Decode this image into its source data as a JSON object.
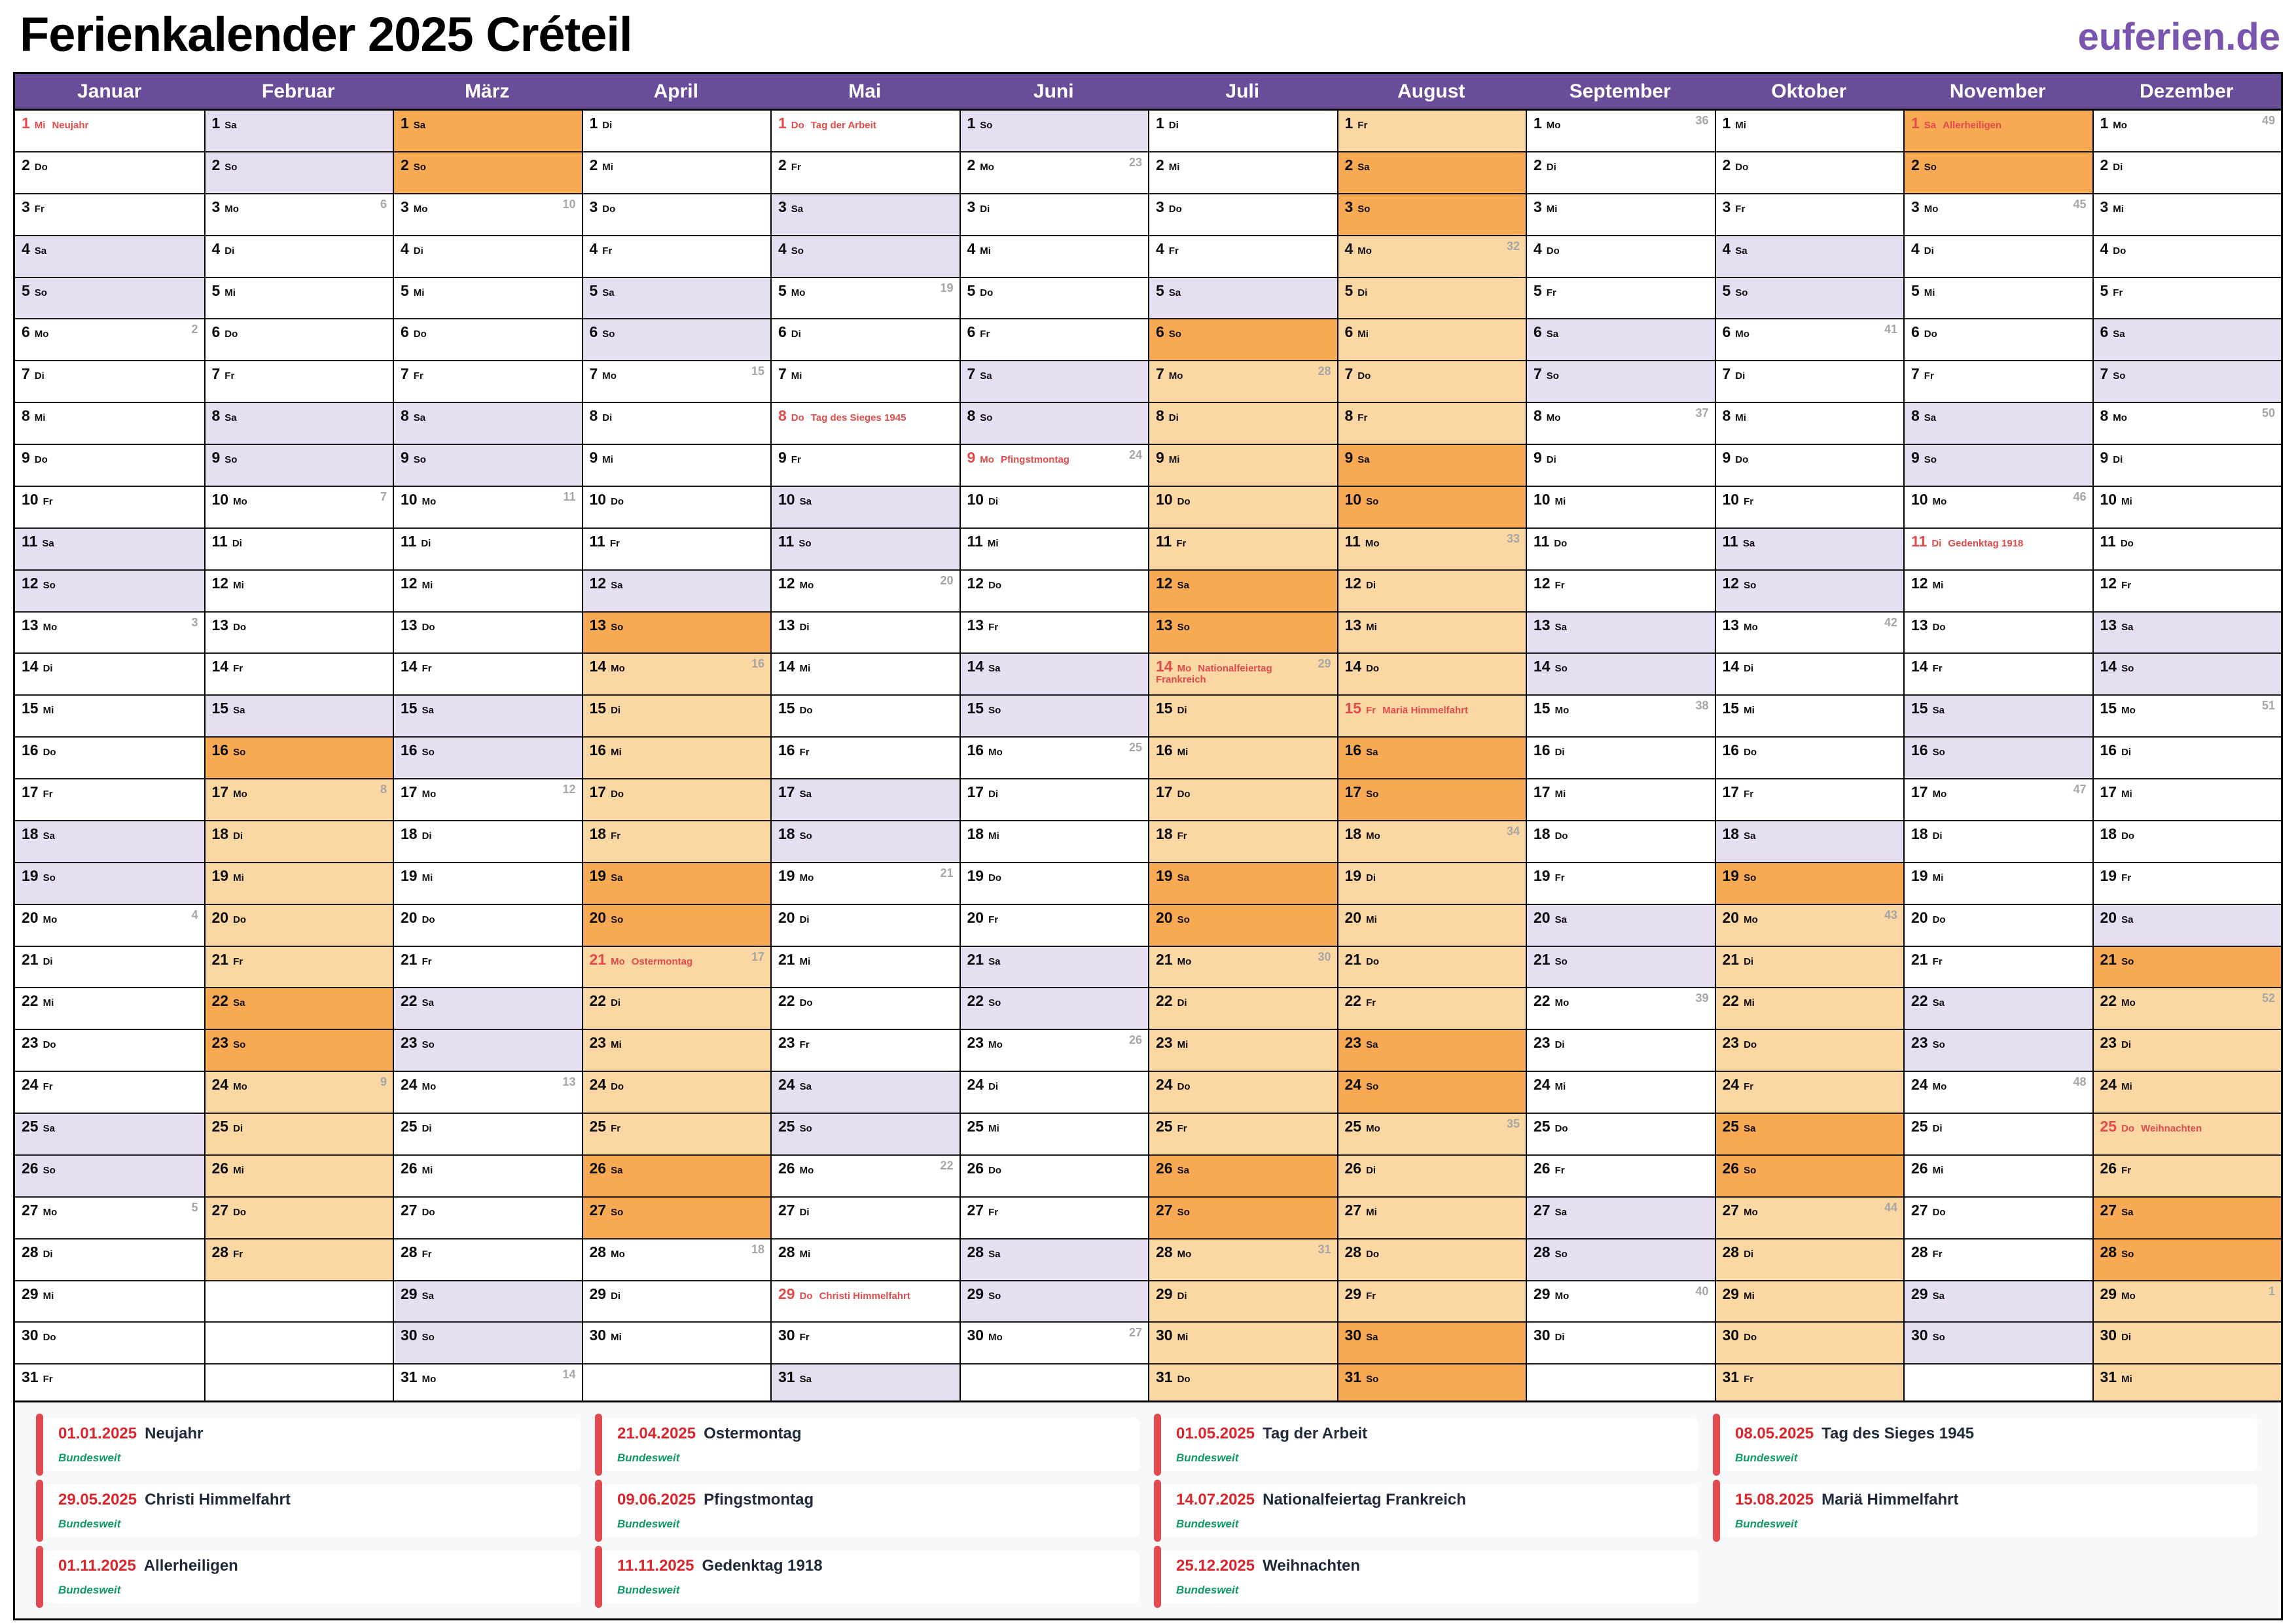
{
  "title": "Ferienkalender 2025 Créteil",
  "logo": "euferien.de",
  "weekdays": [
    "Mo",
    "Di",
    "Mi",
    "Do",
    "Fr",
    "Sa",
    "So"
  ],
  "colors": {
    "header_purple": "#6A4D99",
    "logo_purple": "#7A55AD",
    "weekend_bg": "#E5DFF1",
    "vacation_weekday_bg": "#FBD7A3",
    "vacation_weekend_bg": "#F8A954",
    "holiday_red": "#E14B4B",
    "week_number_gray": "#A6A6A6",
    "legend_bg": "#F7F8FA",
    "legend_date_red": "#D8262C",
    "legend_name": "#1E2A3A",
    "legend_scope_green": "#129A63",
    "card_bar_red": "#E14B50"
  },
  "months": [
    {
      "name": "Januar",
      "days": 31,
      "first_weekday": 2,
      "week_numbers": {
        "6": 2,
        "13": 3,
        "20": 4,
        "27": 5
      },
      "holidays": {
        "1": "Neujahr"
      },
      "vacations": []
    },
    {
      "name": "Februar",
      "days": 28,
      "first_weekday": 5,
      "week_numbers": {
        "3": 6,
        "10": 7,
        "17": 8,
        "24": 9
      },
      "holidays": {},
      "vacations": [
        [
          16,
          28
        ]
      ]
    },
    {
      "name": "März",
      "days": 31,
      "first_weekday": 5,
      "week_numbers": {
        "3": 10,
        "10": 11,
        "17": 12,
        "24": 13,
        "31": 14
      },
      "holidays": {},
      "vacations": [
        [
          1,
          2
        ]
      ]
    },
    {
      "name": "April",
      "days": 30,
      "first_weekday": 1,
      "week_numbers": {
        "7": 15,
        "14": 16,
        "21": 17,
        "28": 18
      },
      "holidays": {
        "21": "Ostermontag"
      },
      "vacations": [
        [
          13,
          27
        ]
      ]
    },
    {
      "name": "Mai",
      "days": 31,
      "first_weekday": 3,
      "week_numbers": {
        "5": 19,
        "12": 20,
        "19": 21,
        "26": 22
      },
      "holidays": {
        "1": "Tag der Arbeit",
        "8": "Tag des Sieges 1945",
        "29": "Christi Himmelfahrt"
      },
      "vacations": []
    },
    {
      "name": "Juni",
      "days": 30,
      "first_weekday": 6,
      "week_numbers": {
        "2": 23,
        "9": 24,
        "16": 25,
        "23": 26,
        "30": 27
      },
      "holidays": {
        "9": "Pfingstmontag"
      },
      "vacations": []
    },
    {
      "name": "Juli",
      "days": 31,
      "first_weekday": 1,
      "week_numbers": {
        "7": 28,
        "14": 29,
        "21": 30,
        "28": 31
      },
      "holidays": {
        "14": "Nationalfeiertag Frankreich"
      },
      "vacations": [
        [
          6,
          31
        ]
      ]
    },
    {
      "name": "August",
      "days": 31,
      "first_weekday": 4,
      "week_numbers": {
        "4": 32,
        "11": 33,
        "18": 34,
        "25": 35
      },
      "holidays": {
        "15": "Mariä Himmelfahrt"
      },
      "vacations": [
        [
          1,
          31
        ]
      ]
    },
    {
      "name": "September",
      "days": 30,
      "first_weekday": 0,
      "week_numbers": {
        "1": 36,
        "8": 37,
        "15": 38,
        "22": 39,
        "29": 40
      },
      "holidays": {},
      "vacations": []
    },
    {
      "name": "Oktober",
      "days": 31,
      "first_weekday": 2,
      "week_numbers": {
        "6": 41,
        "13": 42,
        "20": 43,
        "27": 44
      },
      "holidays": {},
      "vacations": [
        [
          19,
          31
        ]
      ]
    },
    {
      "name": "November",
      "days": 30,
      "first_weekday": 5,
      "week_numbers": {
        "3": 45,
        "10": 46,
        "17": 47,
        "24": 48
      },
      "holidays": {
        "1": "Allerheiligen",
        "11": "Gedenktag 1918"
      },
      "vacations": [
        [
          1,
          2
        ]
      ]
    },
    {
      "name": "Dezember",
      "days": 31,
      "first_weekday": 0,
      "week_numbers": {
        "1": 49,
        "8": 50,
        "15": 51,
        "22": 52,
        "29": 1
      },
      "holidays": {
        "25": "Weihnachten"
      },
      "vacations": [
        [
          21,
          31
        ]
      ]
    }
  ],
  "legend": [
    {
      "date": "01.01.2025",
      "name": "Neujahr",
      "scope": "Bundesweit"
    },
    {
      "date": "21.04.2025",
      "name": "Ostermontag",
      "scope": "Bundesweit"
    },
    {
      "date": "01.05.2025",
      "name": "Tag der Arbeit",
      "scope": "Bundesweit"
    },
    {
      "date": "08.05.2025",
      "name": "Tag des Sieges 1945",
      "scope": "Bundesweit"
    },
    {
      "date": "29.05.2025",
      "name": "Christi Himmelfahrt",
      "scope": "Bundesweit"
    },
    {
      "date": "09.06.2025",
      "name": "Pfingstmontag",
      "scope": "Bundesweit"
    },
    {
      "date": "14.07.2025",
      "name": "Nationalfeiertag Frankreich",
      "scope": "Bundesweit"
    },
    {
      "date": "15.08.2025",
      "name": "Mariä Himmelfahrt",
      "scope": "Bundesweit"
    },
    {
      "date": "01.11.2025",
      "name": "Allerheiligen",
      "scope": "Bundesweit"
    },
    {
      "date": "11.11.2025",
      "name": "Gedenktag 1918",
      "scope": "Bundesweit"
    },
    {
      "date": "25.12.2025",
      "name": "Weihnachten",
      "scope": "Bundesweit"
    }
  ]
}
